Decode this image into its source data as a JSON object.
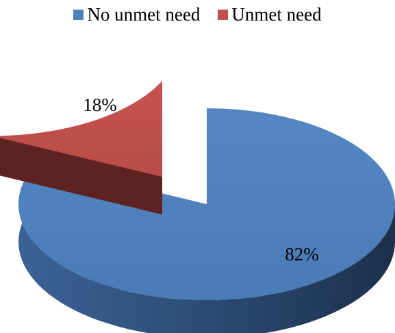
{
  "chart_data": {
    "type": "pie",
    "style": "3d-exploded",
    "title": "",
    "legend_position": "top",
    "categories": [
      "No unmet need",
      "Unmet need"
    ],
    "values": [
      82,
      18
    ],
    "data_labels": [
      "82%",
      "18%"
    ],
    "colors": {
      "No unmet need": {
        "top": "#4f81bd",
        "side": "#2e4c72",
        "dark": "#1f3352"
      },
      "Unmet need": {
        "top": "#c0504d",
        "side": "#632422",
        "dark": "#4a1816"
      }
    }
  }
}
